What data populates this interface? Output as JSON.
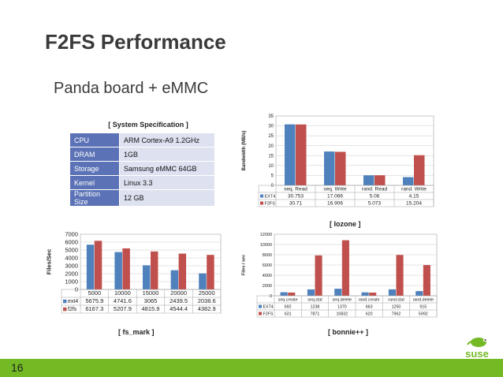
{
  "title": "F2FS Performance",
  "subtitle": "Panda board + eMMC",
  "spec": {
    "caption": "[ System Specification ]",
    "rows": [
      {
        "key": "CPU",
        "value": "ARM Cortex-A9 1.2GHz"
      },
      {
        "key": "DRAM",
        "value": "1GB"
      },
      {
        "key": "Storage",
        "value": "Samsung eMMC 64GB"
      },
      {
        "key": "Kernel",
        "value": "Linux 3.3"
      },
      {
        "key": "Partition Size",
        "value": "12 GB"
      }
    ]
  },
  "page_number": "16",
  "logo_text": "suse",
  "colors": {
    "ext4": "#4f81bd",
    "f2fs": "#c0504d",
    "footer": "#73ba25",
    "spec_key": "#5b73b6",
    "spec_value": "#dde1f0"
  },
  "chart_data": [
    {
      "id": "iozone",
      "type": "bar",
      "caption": "[ Iozone ]",
      "ylabel": "Bandwidth (MB/s)",
      "categories": [
        "seq. Read",
        "seq. Write",
        "rand. Read",
        "rand. Write"
      ],
      "series": [
        {
          "name": "EXT4",
          "values": [
            30.753,
            17.066,
            5.06,
            4.15
          ],
          "labels": [
            "30.753",
            "17.066",
            "5.06",
            "4.15"
          ]
        },
        {
          "name": "F2FS",
          "values": [
            30.71,
            16.906,
            5.073,
            15.204
          ],
          "labels": [
            "30.71",
            "16.906",
            "5.073",
            "15.204"
          ]
        }
      ],
      "ylim": [
        0,
        35
      ],
      "yticks": [
        0,
        5,
        10,
        15,
        20,
        25,
        30,
        35
      ],
      "grid": true,
      "legend": "data-table"
    },
    {
      "id": "fsmark",
      "type": "bar",
      "caption": "[ fs_mark ]",
      "ylabel": "Files/Sec",
      "categories": [
        "5000",
        "10000",
        "15000",
        "20000",
        "25000"
      ],
      "series": [
        {
          "name": "ext4",
          "values": [
            5675.9,
            4741.6,
            3065,
            2439.5,
            2038.6
          ],
          "labels": [
            "5675.9",
            "4741.6",
            "3065",
            "2439.5",
            "2038.6"
          ]
        },
        {
          "name": "f2fs",
          "values": [
            6167.3,
            5207.9,
            4815.9,
            4544.4,
            4382.9
          ],
          "labels": [
            "6167.3",
            "5207.9",
            "4815.9",
            "4544.4",
            "4382.9"
          ]
        }
      ],
      "ylim": [
        0,
        7000
      ],
      "yticks": [
        0,
        1000,
        2000,
        3000,
        4000,
        5000,
        6000,
        7000
      ],
      "grid": true,
      "legend": "data-table"
    },
    {
      "id": "bonnie",
      "type": "bar",
      "caption": "[ bonnie++ ]",
      "ylabel": "Files / sec",
      "categories": [
        "seq.create",
        "seq.stat",
        "seq.delete",
        "rand.create",
        "rand.stat",
        "rand.delete"
      ],
      "series": [
        {
          "name": "EXT4",
          "values": [
            692,
            1238,
            1370,
            663,
            1250,
            915
          ],
          "labels": [
            "692",
            "1238",
            "1370",
            "663",
            "1250",
            "915"
          ]
        },
        {
          "name": "F2FS",
          "values": [
            631,
            7871,
            10832,
            620,
            7962,
            5992
          ],
          "labels": [
            "631",
            "7871",
            "10832",
            "620",
            "7962",
            "5992"
          ]
        }
      ],
      "ylim": [
        0,
        12000
      ],
      "yticks": [
        0,
        2000,
        4000,
        6000,
        8000,
        10000,
        12000
      ],
      "grid": true,
      "legend": "data-table"
    }
  ]
}
